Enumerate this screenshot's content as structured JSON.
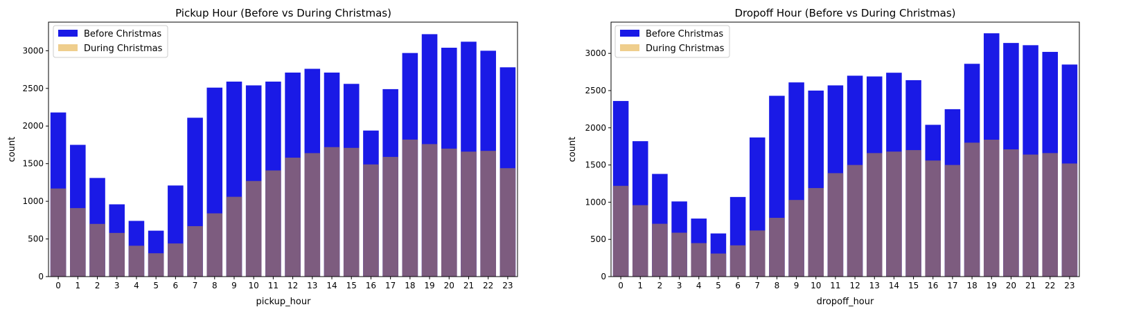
{
  "colors": {
    "before": "#1a1ae6",
    "during": "#e6b450",
    "overlap": "#7d5c7f",
    "axis": "#000000"
  },
  "chart_data": [
    {
      "type": "bar",
      "title": "Pickup Hour (Before vs During Christmas)",
      "xlabel": "pickup_hour",
      "ylabel": "count",
      "categories": [
        "0",
        "1",
        "2",
        "3",
        "4",
        "5",
        "6",
        "7",
        "8",
        "9",
        "10",
        "11",
        "12",
        "13",
        "14",
        "15",
        "16",
        "17",
        "18",
        "19",
        "20",
        "21",
        "22",
        "23"
      ],
      "ylim": [
        0,
        3380
      ],
      "yticks": [
        0,
        500,
        1000,
        1500,
        2000,
        2500,
        3000
      ],
      "grid": false,
      "legend_position": "top-left",
      "series": [
        {
          "name": "Before Christmas",
          "values": [
            2180,
            1750,
            1310,
            960,
            740,
            610,
            1210,
            2110,
            2510,
            2590,
            2540,
            2590,
            2710,
            2760,
            2710,
            2560,
            1940,
            2490,
            2970,
            3220,
            3040,
            3120,
            3000,
            2780
          ]
        },
        {
          "name": "During Christmas",
          "values": [
            1170,
            910,
            700,
            580,
            410,
            310,
            440,
            670,
            840,
            1060,
            1270,
            1410,
            1580,
            1640,
            1720,
            1710,
            1490,
            1590,
            1820,
            1760,
            1700,
            1660,
            1670,
            1440
          ]
        }
      ]
    },
    {
      "type": "bar",
      "title": "Dropoff Hour (Before vs During Christmas)",
      "xlabel": "dropoff_hour",
      "ylabel": "count",
      "categories": [
        "0",
        "1",
        "2",
        "3",
        "4",
        "5",
        "6",
        "7",
        "8",
        "9",
        "10",
        "11",
        "12",
        "13",
        "14",
        "15",
        "16",
        "17",
        "18",
        "19",
        "20",
        "21",
        "22",
        "23"
      ],
      "ylim": [
        0,
        3420
      ],
      "yticks": [
        0,
        500,
        1000,
        1500,
        2000,
        2500,
        3000
      ],
      "grid": false,
      "legend_position": "top-left",
      "series": [
        {
          "name": "Before Christmas",
          "values": [
            2360,
            1820,
            1380,
            1010,
            780,
            580,
            1070,
            1870,
            2430,
            2610,
            2500,
            2570,
            2700,
            2690,
            2740,
            2640,
            2040,
            2250,
            2860,
            3270,
            3140,
            3110,
            3020,
            2850
          ]
        },
        {
          "name": "During Christmas",
          "values": [
            1220,
            960,
            710,
            590,
            450,
            310,
            420,
            620,
            790,
            1030,
            1190,
            1390,
            1500,
            1660,
            1680,
            1700,
            1560,
            1500,
            1800,
            1840,
            1710,
            1640,
            1660,
            1520
          ]
        }
      ]
    }
  ]
}
